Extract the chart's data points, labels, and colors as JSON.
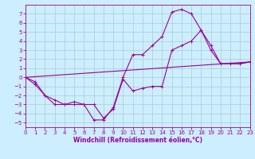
{
  "xlabel": "Windchill (Refroidissement éolien,°C)",
  "bg_color": "#cceeff",
  "grid_color": "#aacccc",
  "line_color": "#990099",
  "xlim": [
    0,
    23
  ],
  "ylim": [
    -5.5,
    8
  ],
  "xticks": [
    0,
    1,
    2,
    3,
    4,
    5,
    6,
    7,
    8,
    9,
    10,
    11,
    12,
    13,
    14,
    15,
    16,
    17,
    18,
    19,
    20,
    21,
    22,
    23
  ],
  "yticks": [
    -5,
    -4,
    -3,
    -2,
    -1,
    0,
    1,
    2,
    3,
    4,
    5,
    6,
    7
  ],
  "line1_x": [
    0,
    1,
    2,
    3,
    4,
    5,
    6,
    7,
    8,
    9,
    10,
    11,
    12,
    13,
    14,
    15,
    16,
    17,
    18,
    19,
    20,
    21,
    22,
    23
  ],
  "line1_y": [
    0,
    -0.5,
    -2.0,
    -2.5,
    -3.0,
    -2.7,
    -3.0,
    -4.7,
    -4.7,
    -3.3,
    0.0,
    2.5,
    2.5,
    3.5,
    4.5,
    7.2,
    7.5,
    7.0,
    5.2,
    3.5,
    1.5,
    1.5,
    1.5,
    1.7
  ],
  "line2_x": [
    0,
    1,
    2,
    3,
    4,
    5,
    6,
    7,
    8,
    9,
    10,
    11,
    12,
    13,
    14,
    15,
    16,
    17,
    18,
    19,
    20,
    21,
    22,
    23
  ],
  "line2_y": [
    0,
    -0.8,
    -2.0,
    -3.0,
    -3.0,
    -3.0,
    -3.0,
    -3.0,
    -4.5,
    -3.5,
    -0.2,
    -1.5,
    -1.2,
    -1.0,
    -1.0,
    3.0,
    3.5,
    4.0,
    5.2,
    3.0,
    1.5,
    1.5,
    1.5,
    1.7
  ],
  "line3_x": [
    0,
    23
  ],
  "line3_y": [
    0,
    1.7
  ],
  "tick_fontsize": 5,
  "xlabel_fontsize": 5.5,
  "marker_size": 2.5,
  "linewidth": 0.8
}
